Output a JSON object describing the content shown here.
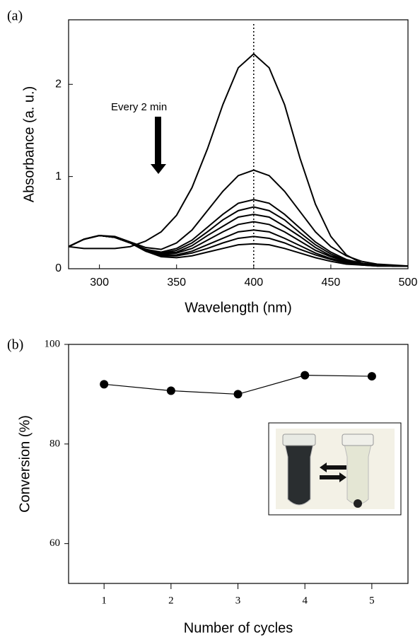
{
  "chart_data": [
    {
      "type": "line",
      "panel_label": "(a)",
      "xlabel": "Wavelength (nm)",
      "ylabel": "Absorbance (a. u.)",
      "annotation": "Every 2 min",
      "reference_x": 400,
      "color": "#000000",
      "xlim": [
        280,
        500
      ],
      "ylim": [
        0,
        2.7
      ],
      "xticks": [
        300,
        350,
        400,
        450,
        500
      ],
      "yticks": [
        0,
        1,
        2
      ],
      "x": [
        280,
        290,
        300,
        310,
        320,
        330,
        340,
        350,
        360,
        370,
        380,
        390,
        400,
        410,
        420,
        430,
        440,
        450,
        460,
        470,
        480,
        490,
        500
      ],
      "series": [
        {
          "values": [
            0.24,
            0.22,
            0.22,
            0.22,
            0.24,
            0.3,
            0.4,
            0.58,
            0.88,
            1.3,
            1.78,
            2.18,
            2.33,
            2.18,
            1.78,
            1.2,
            0.7,
            0.35,
            0.15,
            0.06,
            0.03,
            0.03,
            0.03
          ]
        },
        {
          "values": [
            0.24,
            0.32,
            0.36,
            0.35,
            0.29,
            0.23,
            0.21,
            0.28,
            0.42,
            0.63,
            0.84,
            1.01,
            1.07,
            1.01,
            0.84,
            0.62,
            0.4,
            0.24,
            0.14,
            0.08,
            0.05,
            0.04,
            0.03
          ]
        },
        {
          "values": [
            0.24,
            0.32,
            0.36,
            0.34,
            0.28,
            0.21,
            0.18,
            0.22,
            0.31,
            0.45,
            0.59,
            0.71,
            0.75,
            0.71,
            0.59,
            0.44,
            0.29,
            0.18,
            0.1,
            0.06,
            0.04,
            0.03,
            0.03
          ]
        },
        {
          "values": [
            0.24,
            0.32,
            0.36,
            0.34,
            0.28,
            0.21,
            0.17,
            0.2,
            0.28,
            0.4,
            0.53,
            0.63,
            0.67,
            0.63,
            0.53,
            0.39,
            0.26,
            0.16,
            0.09,
            0.06,
            0.04,
            0.03,
            0.03
          ]
        },
        {
          "values": [
            0.24,
            0.32,
            0.36,
            0.34,
            0.28,
            0.2,
            0.17,
            0.18,
            0.25,
            0.36,
            0.46,
            0.56,
            0.59,
            0.56,
            0.46,
            0.35,
            0.23,
            0.14,
            0.09,
            0.05,
            0.04,
            0.03,
            0.03
          ]
        },
        {
          "values": [
            0.24,
            0.32,
            0.36,
            0.34,
            0.28,
            0.2,
            0.16,
            0.17,
            0.22,
            0.31,
            0.4,
            0.48,
            0.51,
            0.48,
            0.4,
            0.3,
            0.2,
            0.13,
            0.08,
            0.05,
            0.04,
            0.03,
            0.03
          ]
        },
        {
          "values": [
            0.24,
            0.32,
            0.36,
            0.34,
            0.28,
            0.2,
            0.15,
            0.15,
            0.19,
            0.26,
            0.33,
            0.4,
            0.42,
            0.4,
            0.33,
            0.25,
            0.17,
            0.11,
            0.07,
            0.05,
            0.04,
            0.03,
            0.03
          ]
        },
        {
          "values": [
            0.24,
            0.32,
            0.36,
            0.34,
            0.28,
            0.19,
            0.14,
            0.14,
            0.17,
            0.22,
            0.28,
            0.33,
            0.35,
            0.33,
            0.28,
            0.21,
            0.15,
            0.1,
            0.06,
            0.04,
            0.03,
            0.03,
            0.03
          ]
        },
        {
          "values": [
            0.24,
            0.32,
            0.36,
            0.34,
            0.28,
            0.19,
            0.13,
            0.12,
            0.14,
            0.18,
            0.22,
            0.26,
            0.27,
            0.26,
            0.22,
            0.17,
            0.12,
            0.08,
            0.05,
            0.04,
            0.03,
            0.03,
            0.03
          ]
        }
      ]
    },
    {
      "type": "line",
      "panel_label": "(b)",
      "xlabel": "Number of cycles",
      "ylabel": "Conversion (%)",
      "markers": true,
      "color": "#000000",
      "xlim": [
        0.47,
        5.54
      ],
      "ylim": [
        52,
        100
      ],
      "xticks": [
        1,
        2,
        3,
        4,
        5
      ],
      "yticks": [
        60,
        80,
        100
      ],
      "x": [
        1,
        2,
        3,
        4,
        5
      ],
      "values": [
        92,
        90.7,
        90,
        93.8,
        93.6
      ]
    }
  ]
}
